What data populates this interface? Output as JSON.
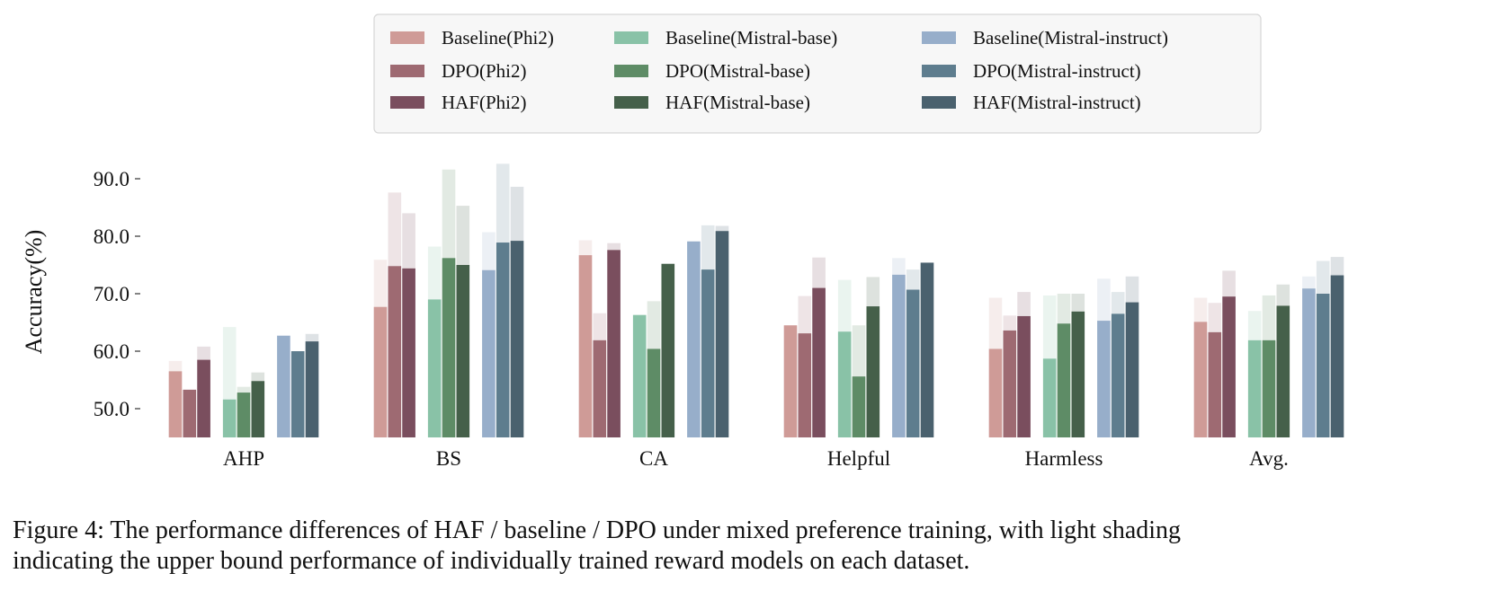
{
  "chart_data": {
    "type": "bar",
    "ylabel": "Accuracy(%)",
    "ylim": [
      45,
      93
    ],
    "yticks": [
      "50.0",
      "60.0",
      "70.0",
      "80.0",
      "90.0"
    ],
    "categories": [
      "AHP",
      "BS",
      "CA",
      "Helpful",
      "Harmless",
      "Avg."
    ],
    "legend_position": "top-center",
    "series": [
      {
        "name": "Baseline(Phi2)",
        "color": "#cf9b97",
        "values": [
          56.5,
          67.7,
          76.7,
          64.5,
          60.4,
          65.1
        ],
        "upper": [
          58.3,
          75.9,
          79.3,
          null,
          69.3,
          69.3
        ]
      },
      {
        "name": "DPO(Phi2)",
        "color": "#9e6a72",
        "values": [
          53.3,
          74.8,
          61.9,
          63.1,
          63.6,
          63.3
        ],
        "upper": [
          null,
          87.6,
          66.6,
          69.6,
          66.2,
          68.4
        ]
      },
      {
        "name": "HAF(Phi2)",
        "color": "#7a4e5e",
        "values": [
          58.5,
          74.4,
          77.6,
          71.0,
          66.1,
          69.5
        ],
        "upper": [
          60.8,
          84.0,
          78.8,
          76.3,
          70.3,
          74.0
        ]
      },
      {
        "name": "Baseline(Mistral-base)",
        "color": "#89c2a7",
        "values": [
          51.6,
          69.0,
          66.3,
          63.4,
          58.7,
          61.9
        ],
        "upper": [
          64.2,
          78.2,
          null,
          72.4,
          69.7,
          67.0
        ]
      },
      {
        "name": "DPO(Mistral-base)",
        "color": "#5e8c66",
        "values": [
          52.8,
          76.2,
          60.4,
          55.6,
          64.8,
          61.9
        ],
        "upper": [
          53.8,
          91.6,
          68.7,
          64.5,
          70.0,
          69.7
        ]
      },
      {
        "name": "HAF(Mistral-base)",
        "color": "#45604a",
        "values": [
          54.8,
          75.0,
          75.2,
          67.8,
          66.9,
          67.9
        ],
        "upper": [
          56.3,
          85.3,
          null,
          72.9,
          70.0,
          71.6
        ]
      },
      {
        "name": "Baseline(Mistral-instruct)",
        "color": "#97aeca",
        "values": [
          62.7,
          74.1,
          79.1,
          73.3,
          65.3,
          70.9
        ],
        "upper": [
          null,
          80.7,
          null,
          76.2,
          72.6,
          73.0
        ]
      },
      {
        "name": "DPO(Mistral-instruct)",
        "color": "#5e7d8e",
        "values": [
          60.0,
          78.9,
          74.2,
          70.7,
          66.5,
          70.0
        ],
        "upper": [
          null,
          92.6,
          81.9,
          74.2,
          70.3,
          75.7
        ]
      },
      {
        "name": "HAF(Mistral-instruct)",
        "color": "#4a616e",
        "values": [
          61.7,
          79.2,
          80.9,
          75.4,
          68.5,
          73.2
        ],
        "upper": [
          63.0,
          88.6,
          81.8,
          null,
          73.0,
          76.4
        ]
      }
    ]
  },
  "caption": {
    "prefix": "Figure 4: The performance differences of H",
    "smallcaps": "AF",
    "rest": " / baseline / DPO under mixed preference training, with light shading",
    "line2": "indicating the upper bound performance of individually trained reward models on each dataset."
  }
}
